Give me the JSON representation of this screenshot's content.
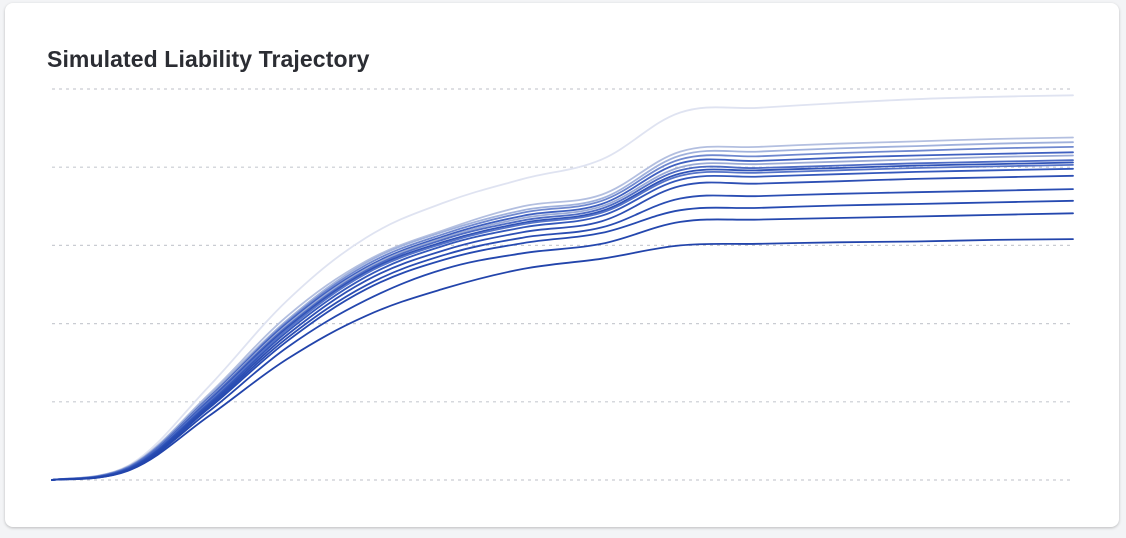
{
  "chart": {
    "title": "Simulated Liability Trajectory"
  },
  "chart_data": {
    "type": "line",
    "title": "Simulated Liability Trajectory",
    "xlabel": "",
    "ylabel": "",
    "x": [
      0,
      1,
      2,
      3,
      4,
      5,
      6,
      7,
      8,
      9,
      10,
      11,
      12,
      13
    ],
    "ylim": [
      0,
      5
    ],
    "grid": true,
    "legend": "none",
    "series": [
      {
        "color": "#dfe3f1",
        "values": [
          0,
          0.2,
          1.2,
          2.3,
          3.1,
          3.55,
          3.85,
          4.1,
          4.7,
          4.76,
          4.82,
          4.87,
          4.9,
          4.92
        ]
      },
      {
        "color": "#b3bfe0",
        "values": [
          0,
          0.19,
          1.1,
          2.1,
          2.8,
          3.2,
          3.5,
          3.65,
          4.2,
          4.26,
          4.3,
          4.33,
          4.36,
          4.38
        ]
      },
      {
        "color": "#a0b1dc",
        "values": [
          0,
          0.18,
          1.08,
          2.05,
          2.78,
          3.18,
          3.45,
          3.6,
          4.15,
          4.2,
          4.24,
          4.27,
          4.3,
          4.32
        ]
      },
      {
        "color": "#6f88cf",
        "values": [
          0,
          0.18,
          1.06,
          2.03,
          2.75,
          3.15,
          3.42,
          3.57,
          4.1,
          4.14,
          4.18,
          4.21,
          4.24,
          4.26
        ]
      },
      {
        "color": "#3f60c0",
        "values": [
          0,
          0.17,
          1.05,
          2.01,
          2.72,
          3.12,
          3.38,
          3.53,
          4.05,
          4.08,
          4.12,
          4.15,
          4.17,
          4.19
        ]
      },
      {
        "color": "#9aaad6",
        "values": [
          0,
          0.17,
          1.04,
          1.99,
          2.7,
          3.1,
          3.35,
          3.5,
          4.0,
          4.04,
          4.07,
          4.1,
          4.13,
          4.15
        ]
      },
      {
        "color": "#4d6bc4",
        "values": [
          0,
          0.17,
          1.03,
          1.97,
          2.68,
          3.08,
          3.32,
          3.47,
          3.96,
          3.99,
          4.02,
          4.05,
          4.07,
          4.09
        ]
      },
      {
        "color": "#2f52b6",
        "values": [
          0,
          0.16,
          1.01,
          1.95,
          2.66,
          3.05,
          3.29,
          3.44,
          3.92,
          3.96,
          3.99,
          4.02,
          4.04,
          4.06
        ]
      },
      {
        "color": "#5573c8",
        "values": [
          0,
          0.16,
          1.0,
          1.93,
          2.64,
          3.03,
          3.27,
          3.42,
          3.89,
          3.93,
          3.96,
          3.99,
          4.01,
          4.03
        ]
      },
      {
        "color": "#3458bb",
        "values": [
          0,
          0.16,
          0.98,
          1.9,
          2.6,
          3.0,
          3.23,
          3.38,
          3.84,
          3.88,
          3.91,
          3.94,
          3.96,
          3.98
        ]
      },
      {
        "color": "#2d4fb4",
        "values": [
          0,
          0.15,
          0.96,
          1.86,
          2.55,
          2.94,
          3.17,
          3.31,
          3.76,
          3.79,
          3.82,
          3.85,
          3.87,
          3.89
        ]
      },
      {
        "color": "#2a4db3",
        "values": [
          0,
          0.15,
          0.94,
          1.82,
          2.49,
          2.88,
          3.1,
          3.23,
          3.6,
          3.63,
          3.66,
          3.68,
          3.7,
          3.72
        ]
      },
      {
        "color": "#264ab1",
        "values": [
          0,
          0.14,
          0.92,
          1.78,
          2.44,
          2.82,
          3.03,
          3.16,
          3.45,
          3.48,
          3.51,
          3.53,
          3.55,
          3.57
        ]
      },
      {
        "color": "#2447ae",
        "values": [
          0,
          0.14,
          0.88,
          1.7,
          2.3,
          2.7,
          2.9,
          3.02,
          3.3,
          3.33,
          3.35,
          3.37,
          3.39,
          3.41
        ]
      },
      {
        "color": "#2244ab",
        "values": [
          0,
          0.13,
          0.82,
          1.55,
          2.1,
          2.45,
          2.7,
          2.83,
          3.0,
          3.02,
          3.04,
          3.05,
          3.07,
          3.08
        ]
      }
    ]
  }
}
